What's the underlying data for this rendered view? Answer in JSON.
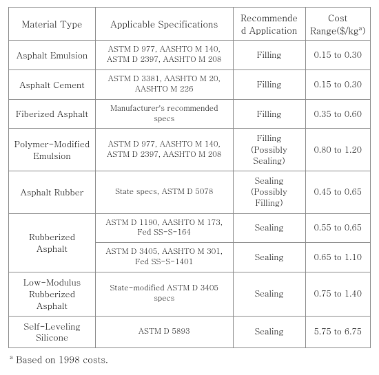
{
  "table": {
    "border_color": "#8a8a8a",
    "background_color": "#ffffff",
    "text_color": "#000000",
    "font_family": "serif",
    "column_widths_pct": [
      24,
      38,
      20,
      18
    ],
    "header_fontsize_pt": 13,
    "body_fontsize_pt": 12,
    "spec_fontsize_pt": 11,
    "columns": [
      {
        "key": "material",
        "label": "Material Type",
        "align": "center"
      },
      {
        "key": "specs",
        "label": "Applicable Specifications",
        "align": "center"
      },
      {
        "key": "app",
        "label_html": "Recommended Application",
        "label_line1": "Recommende",
        "label_line2": "d Application",
        "align": "center"
      },
      {
        "key": "cost",
        "label_html": "Cost Range($/kg)",
        "label_prefix": "Cost Range($/kg",
        "label_sup": "a",
        "label_suffix": ")",
        "align": "center"
      }
    ],
    "rows": [
      {
        "material": "Asphalt Emulsion",
        "specs": "ASTM D 977, AASHTO M 140, ASTM D 2397, AASHTO M 208",
        "app": "Filling",
        "cost": "0.15 to 0.30",
        "material_rowspan": 1
      },
      {
        "material": "Asphalt Cement",
        "specs": "ASTM D 3381, AASHTO M 20, AASHTO M 226",
        "app": "Filling",
        "cost": "0.15 to 0.30",
        "material_rowspan": 1
      },
      {
        "material": "Fiberized Asphalt",
        "specs": "Manufacturer's recommended specs",
        "app": "Filling",
        "cost": "0.35 to 0.60",
        "material_rowspan": 1
      },
      {
        "material": "Polymer-Modified Emulsion",
        "specs": "ASTM D 977, AASHTO M 140, ASTM D 2397, AASHTO M 208",
        "app": "Filling (Possibly Sealing)",
        "cost": "0.80 to 1.20",
        "material_rowspan": 1
      },
      {
        "material": "Asphalt Rubber",
        "specs": "State specs, ASTM D 5078",
        "app": "Sealing (Possibly Filling)",
        "cost": "0.45 to 0.65",
        "material_rowspan": 1
      },
      {
        "material": "Rubberized Asphalt",
        "specs": "ASTM D 1190, AASHTO M 173, Fed SS-S-164",
        "app": "Sealing",
        "cost": "0.55 to 0.65",
        "material_rowspan": 2
      },
      {
        "material": null,
        "specs": "ASTM D 3405, AASHTO M 301, Fed SS-S-1401",
        "app": "Sealing",
        "cost": "0.65 to 1.10",
        "material_rowspan": 0
      },
      {
        "material": "Low-Modulus Rubberized Asphalt",
        "specs": "State-modified ASTM D 3405 specs",
        "app": "Sealing",
        "cost": "0.75 to 1.40",
        "material_rowspan": 1
      },
      {
        "material": "Self-Leveling Silicone",
        "specs": "ASTM D 5893",
        "app": "Sealing",
        "cost": "5.75 to 6.75",
        "material_rowspan": 1
      }
    ]
  },
  "footnote": {
    "marker": "a",
    "text": " Based on 1998 costs.",
    "fontsize_pt": 13
  }
}
